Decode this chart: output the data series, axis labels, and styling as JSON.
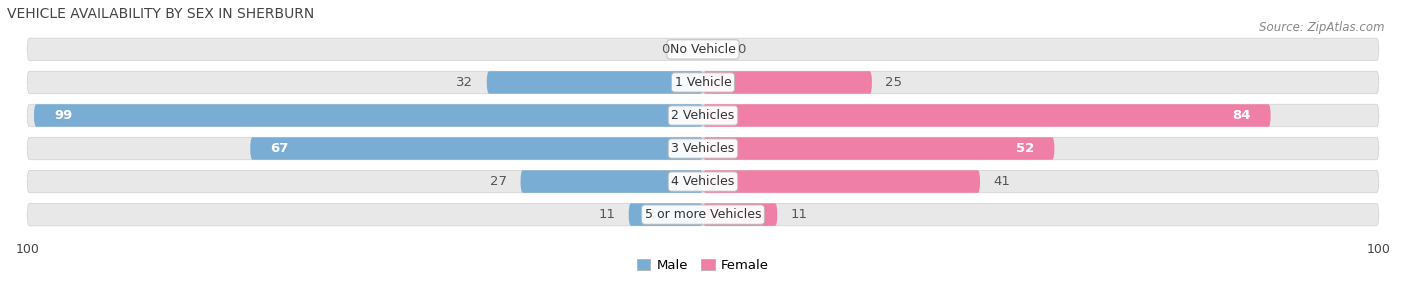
{
  "title": "VEHICLE AVAILABILITY BY SEX IN SHERBURN",
  "source": "Source: ZipAtlas.com",
  "categories": [
    "No Vehicle",
    "1 Vehicle",
    "2 Vehicles",
    "3 Vehicles",
    "4 Vehicles",
    "5 or more Vehicles"
  ],
  "male_values": [
    0,
    32,
    99,
    67,
    27,
    11
  ],
  "female_values": [
    0,
    25,
    84,
    52,
    41,
    11
  ],
  "male_color": "#7aadd4",
  "female_color": "#f07fa8",
  "bar_bg_color": "#e8e8e8",
  "row_bg_color": "#f0f0f0",
  "max_value": 100,
  "bar_height": 0.68,
  "legend_male": "Male",
  "legend_female": "Female",
  "title_fontsize": 10,
  "source_fontsize": 8.5,
  "label_fontsize": 9.5,
  "category_fontsize": 9,
  "axis_label_fontsize": 9,
  "white_label_threshold": 50
}
